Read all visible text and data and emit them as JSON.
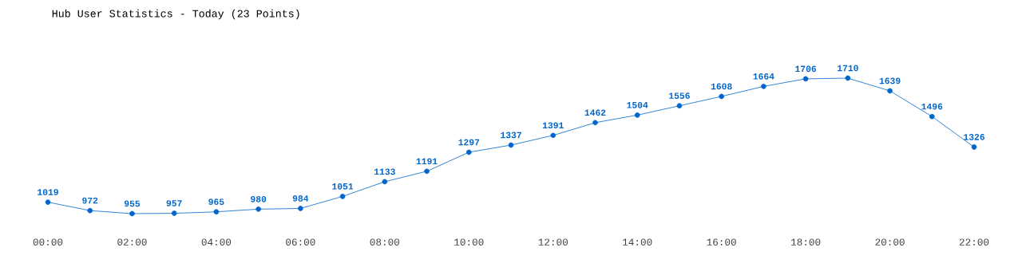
{
  "chart_data": {
    "type": "line",
    "title": "Hub User Statistics - Today (23 Points)",
    "x": [
      0,
      1,
      2,
      3,
      4,
      5,
      6,
      7,
      8,
      9,
      10,
      11,
      12,
      13,
      14,
      15,
      16,
      17,
      18,
      19,
      20,
      21,
      22
    ],
    "values": [
      1019,
      972,
      955,
      957,
      965,
      980,
      984,
      1051,
      1133,
      1191,
      1297,
      1337,
      1391,
      1462,
      1504,
      1556,
      1608,
      1664,
      1706,
      1710,
      1639,
      1496,
      1326
    ],
    "color": "#0066cc",
    "marker": "circle",
    "data_labels": true,
    "xlim": [
      0,
      22
    ],
    "xticks": [
      {
        "value": 0,
        "label": "00:00"
      },
      {
        "value": 2,
        "label": "02:00"
      },
      {
        "value": 4,
        "label": "04:00"
      },
      {
        "value": 6,
        "label": "06:00"
      },
      {
        "value": 8,
        "label": "08:00"
      },
      {
        "value": 10,
        "label": "10:00"
      },
      {
        "value": 12,
        "label": "12:00"
      },
      {
        "value": 14,
        "label": "14:00"
      },
      {
        "value": 16,
        "label": "16:00"
      },
      {
        "value": 18,
        "label": "18:00"
      },
      {
        "value": 20,
        "label": "20:00"
      },
      {
        "value": 22,
        "label": "22:00"
      }
    ]
  }
}
